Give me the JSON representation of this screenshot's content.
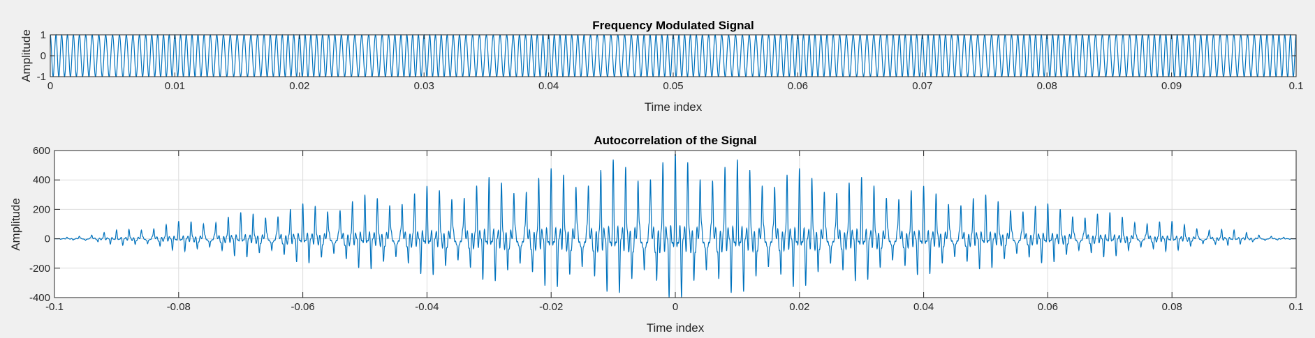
{
  "figure": {
    "background": "#f0f0f0",
    "axes_background": "#ffffff",
    "line_color": "#0072bd",
    "grid_color": "#dcdcdc"
  },
  "chart_data": [
    {
      "type": "line",
      "title": "Frequency Modulated Signal",
      "xlabel": "Time index",
      "ylabel": "Amplitude",
      "xlim": [
        0,
        0.1
      ],
      "ylim": [
        -1,
        1
      ],
      "xticks": [
        0,
        0.01,
        0.02,
        0.03,
        0.04,
        0.05,
        0.06,
        0.07,
        0.08,
        0.09,
        0.1
      ],
      "xtick_labels": [
        "0",
        "0.01",
        "0.02",
        "0.03",
        "0.04",
        "0.05",
        "0.06",
        "0.07",
        "0.08",
        "0.09",
        "0.1"
      ],
      "yticks": [
        -1,
        0,
        1
      ],
      "ytick_labels": [
        "-1",
        "0",
        "1"
      ],
      "grid": true,
      "series": [
        {
          "signal": "fm-sinusoid",
          "amplitude": 1,
          "carrier_frequency": 2000,
          "modulation_frequency": 100,
          "frequency_deviation": 200
        }
      ]
    },
    {
      "type": "line",
      "title": "Autocorrelation of the Signal",
      "xlabel": "Time index",
      "ylabel": "Amplitude",
      "xlim": [
        -0.1,
        0.1
      ],
      "ylim": [
        -400,
        600
      ],
      "xticks": [
        -0.1,
        -0.08,
        -0.06,
        -0.04,
        -0.02,
        0,
        0.02,
        0.04,
        0.06,
        0.08,
        0.1
      ],
      "xtick_labels": [
        "-0.1",
        "-0.08",
        "-0.06",
        "-0.04",
        "-0.02",
        "0",
        "0.02",
        "0.04",
        "0.06",
        "0.08",
        "0.1"
      ],
      "yticks": [
        -400,
        -200,
        0,
        200,
        400,
        600
      ],
      "ytick_labels": [
        "-400",
        "-200",
        "0",
        "200",
        "400",
        "600"
      ],
      "grid": true,
      "series": [
        {
          "signal": "autocorrelation",
          "peak_value": 500,
          "peak_lag": 0,
          "min_value": -360,
          "peak_spacing": 0.002
        }
      ]
    }
  ]
}
